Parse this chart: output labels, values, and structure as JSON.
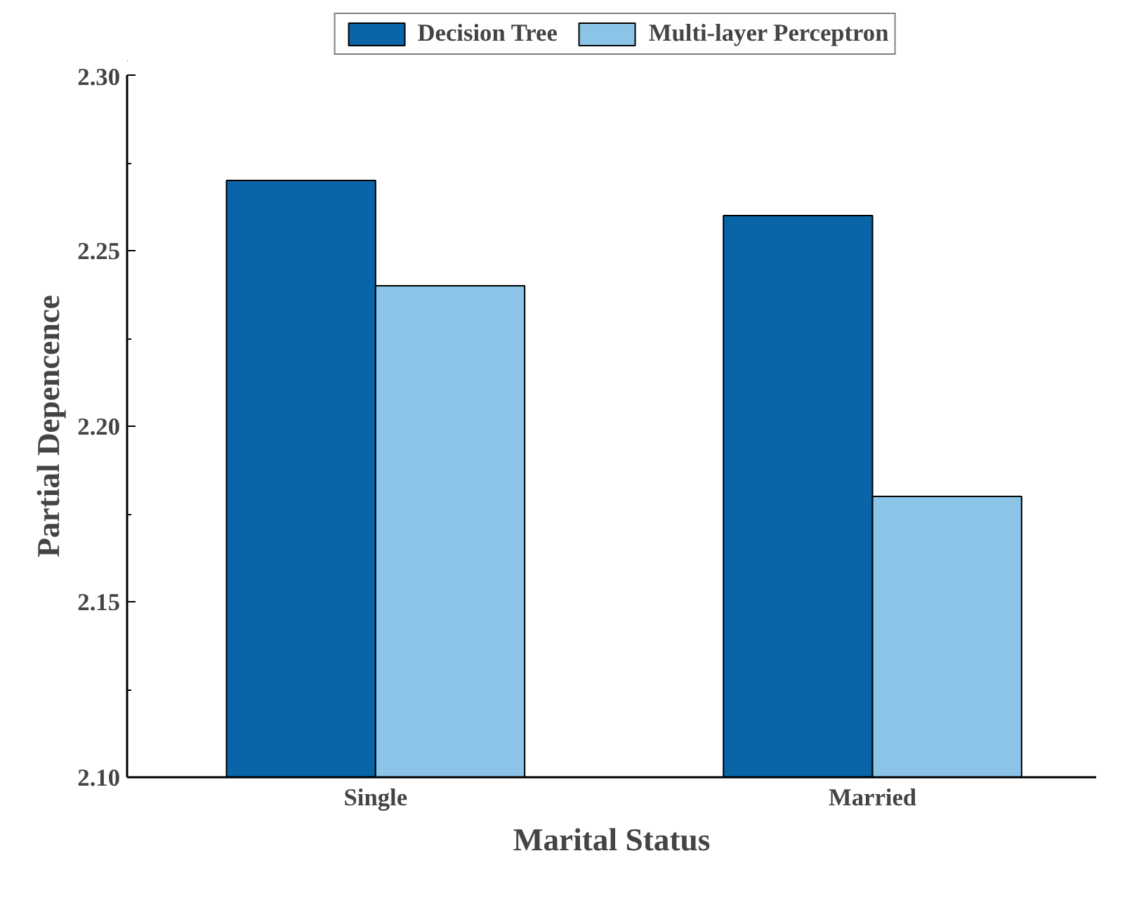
{
  "chart_data": {
    "type": "bar",
    "xlabel": "Marital Status",
    "ylabel": "Partial Depencence",
    "categories": [
      "Single",
      "Married"
    ],
    "series": [
      {
        "name": "Decision Tree",
        "color": "#0a64a8",
        "values": [
          2.27,
          2.26
        ]
      },
      {
        "name": "Multi-layer Perceptron",
        "color": "#8cc4e8",
        "values": [
          2.24,
          2.18
        ]
      }
    ],
    "ylim": [
      2.1,
      2.3
    ],
    "yticks": [
      {
        "value": 2.1,
        "label": "2.10"
      },
      {
        "value": 2.15,
        "label": "2.15"
      },
      {
        "value": 2.2,
        "label": "2.20"
      },
      {
        "value": 2.25,
        "label": "2.25"
      },
      {
        "value": 2.3,
        "label": "2.30"
      }
    ],
    "grid": false,
    "legend": "top"
  }
}
